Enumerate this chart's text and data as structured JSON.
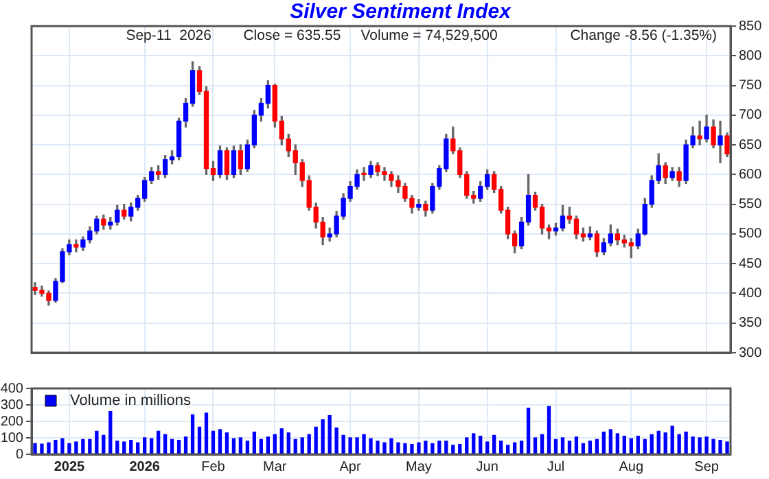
{
  "chart_data": [
    {
      "type": "candlestick",
      "title": "Silver Sentiment Index",
      "annotations": [
        "Sep-11  2026",
        "Close = 635.55",
        "Volume = 74,529,500",
        "Change -8.56 (-1.35%)"
      ],
      "ohlc": [
        [
          410,
          418,
          398,
          405
        ],
        [
          405,
          412,
          395,
          400
        ],
        [
          400,
          404,
          380,
          388
        ],
        [
          388,
          425,
          385,
          420
        ],
        [
          420,
          475,
          418,
          470
        ],
        [
          470,
          490,
          465,
          482
        ],
        [
          482,
          490,
          470,
          478
        ],
        [
          478,
          495,
          472,
          490
        ],
        [
          490,
          512,
          485,
          505
        ],
        [
          505,
          530,
          500,
          525
        ],
        [
          525,
          532,
          508,
          515
        ],
        [
          515,
          528,
          508,
          520
        ],
        [
          520,
          548,
          515,
          540
        ],
        [
          540,
          550,
          525,
          530
        ],
        [
          530,
          552,
          522,
          545
        ],
        [
          545,
          565,
          540,
          560
        ],
        [
          560,
          595,
          555,
          590
        ],
        [
          590,
          612,
          585,
          605
        ],
        [
          605,
          615,
          592,
          600
        ],
        [
          600,
          632,
          595,
          625
        ],
        [
          625,
          640,
          618,
          630
        ],
        [
          630,
          695,
          625,
          690
        ],
        [
          690,
          728,
          680,
          720
        ],
        [
          720,
          790,
          715,
          775
        ],
        [
          775,
          782,
          735,
          740
        ],
        [
          740,
          748,
          600,
          610
        ],
        [
          610,
          622,
          590,
          600
        ],
        [
          600,
          648,
          595,
          640
        ],
        [
          640,
          645,
          592,
          600
        ],
        [
          600,
          648,
          595,
          640
        ],
        [
          640,
          650,
          600,
          610
        ],
        [
          610,
          658,
          605,
          650
        ],
        [
          650,
          708,
          645,
          700
        ],
        [
          700,
          728,
          690,
          720
        ],
        [
          720,
          758,
          712,
          750
        ],
        [
          750,
          752,
          680,
          690
        ],
        [
          690,
          698,
          650,
          660
        ],
        [
          660,
          668,
          630,
          640
        ],
        [
          640,
          650,
          600,
          620
        ],
        [
          620,
          625,
          580,
          590
        ],
        [
          590,
          598,
          540,
          545
        ],
        [
          545,
          552,
          510,
          520
        ],
        [
          520,
          528,
          482,
          495
        ],
        [
          495,
          510,
          488,
          500
        ],
        [
          500,
          538,
          495,
          530
        ],
        [
          530,
          568,
          525,
          560
        ],
        [
          560,
          588,
          555,
          580
        ],
        [
          580,
          608,
          575,
          600
        ],
        [
          600,
          612,
          590,
          600
        ],
        [
          600,
          622,
          595,
          615
        ],
        [
          615,
          620,
          598,
          605
        ],
        [
          605,
          612,
          590,
          600
        ],
        [
          600,
          605,
          580,
          590
        ],
        [
          590,
          598,
          570,
          580
        ],
        [
          580,
          585,
          555,
          560
        ],
        [
          560,
          565,
          535,
          545
        ],
        [
          545,
          558,
          540,
          550
        ],
        [
          550,
          555,
          530,
          540
        ],
        [
          540,
          585,
          535,
          580
        ],
        [
          580,
          615,
          575,
          610
        ],
        [
          610,
          668,
          605,
          660
        ],
        [
          660,
          680,
          635,
          640
        ],
        [
          640,
          645,
          595,
          600
        ],
        [
          600,
          605,
          560,
          565
        ],
        [
          565,
          572,
          552,
          560
        ],
        [
          560,
          588,
          555,
          580
        ],
        [
          580,
          608,
          575,
          600
        ],
        [
          600,
          605,
          570,
          575
        ],
        [
          575,
          580,
          535,
          540
        ],
        [
          540,
          545,
          492,
          500
        ],
        [
          500,
          505,
          468,
          480
        ],
        [
          480,
          528,
          475,
          520
        ],
        [
          520,
          600,
          515,
          565
        ],
        [
          565,
          570,
          540,
          545
        ],
        [
          545,
          550,
          500,
          510
        ],
        [
          510,
          515,
          492,
          505
        ],
        [
          505,
          518,
          498,
          510
        ],
        [
          510,
          548,
          505,
          530
        ],
        [
          530,
          545,
          518,
          525
        ],
        [
          525,
          530,
          492,
          500
        ],
        [
          500,
          510,
          488,
          495
        ],
        [
          495,
          512,
          490,
          500
        ],
        [
          500,
          505,
          462,
          470
        ],
        [
          470,
          492,
          465,
          485
        ],
        [
          485,
          515,
          480,
          500
        ],
        [
          500,
          508,
          482,
          490
        ],
        [
          490,
          498,
          478,
          485
        ],
        [
          485,
          492,
          460,
          480
        ],
        [
          480,
          508,
          475,
          500
        ],
        [
          500,
          560,
          498,
          550
        ],
        [
          550,
          598,
          545,
          590
        ],
        [
          590,
          635,
          585,
          615
        ],
        [
          615,
          620,
          585,
          595
        ],
        [
          595,
          612,
          590,
          605
        ],
        [
          605,
          612,
          580,
          590
        ],
        [
          590,
          658,
          585,
          650
        ],
        [
          650,
          680,
          645,
          665
        ],
        [
          665,
          690,
          650,
          660
        ],
        [
          660,
          700,
          655,
          680
        ],
        [
          680,
          692,
          645,
          650
        ],
        [
          650,
          690,
          620,
          665
        ],
        [
          665,
          670,
          630,
          635
        ]
      ],
      "colors": [
        "#ff0000",
        "#ff0000",
        "#ff0000",
        "#0000ff",
        "#0000ff",
        "#0000ff",
        "#ff0000",
        "#0000ff",
        "#0000ff",
        "#0000ff",
        "#ff0000",
        "#0000ff",
        "#0000ff",
        "#ff0000",
        "#0000ff",
        "#0000ff",
        "#0000ff",
        "#0000ff",
        "#ff0000",
        "#0000ff",
        "#0000ff",
        "#0000ff",
        "#0000ff",
        "#0000ff",
        "#ff0000",
        "#ff0000",
        "#ff0000",
        "#0000ff",
        "#ff0000",
        "#0000ff",
        "#ff0000",
        "#0000ff",
        "#0000ff",
        "#0000ff",
        "#0000ff",
        "#ff0000",
        "#ff0000",
        "#ff0000",
        "#ff0000",
        "#ff0000",
        "#ff0000",
        "#ff0000",
        "#ff0000",
        "#0000ff",
        "#0000ff",
        "#0000ff",
        "#0000ff",
        "#0000ff",
        "#ff0000",
        "#0000ff",
        "#ff0000",
        "#ff0000",
        "#ff0000",
        "#ff0000",
        "#ff0000",
        "#ff0000",
        "#0000ff",
        "#ff0000",
        "#0000ff",
        "#0000ff",
        "#0000ff",
        "#ff0000",
        "#ff0000",
        "#ff0000",
        "#ff0000",
        "#0000ff",
        "#0000ff",
        "#ff0000",
        "#ff0000",
        "#ff0000",
        "#ff0000",
        "#0000ff",
        "#0000ff",
        "#ff0000",
        "#ff0000",
        "#ff0000",
        "#0000ff",
        "#0000ff",
        "#ff0000",
        "#ff0000",
        "#ff0000",
        "#0000ff",
        "#ff0000",
        "#0000ff",
        "#0000ff",
        "#ff0000",
        "#ff0000",
        "#ff0000",
        "#0000ff",
        "#0000ff",
        "#0000ff",
        "#0000ff",
        "#ff0000",
        "#0000ff",
        "#ff0000",
        "#0000ff",
        "#0000ff",
        "#ff0000",
        "#0000ff",
        "#ff0000",
        "#0000ff",
        "#ff0000"
      ],
      "ylim": [
        300,
        850
      ],
      "yticks": [
        300,
        350,
        400,
        450,
        500,
        550,
        600,
        650,
        700,
        750,
        800,
        850
      ],
      "grid": true,
      "tick_labels": "y"
    },
    {
      "type": "bar",
      "legend": "top left",
      "grid": true,
      "categories": [
        null,
        null,
        null,
        null,
        null,
        "2025",
        null,
        null,
        null,
        null,
        null,
        null,
        null,
        null,
        null,
        null,
        "2026",
        null,
        null,
        null,
        null,
        null,
        null,
        null,
        null,
        null,
        "Feb",
        null,
        null,
        null,
        null,
        null,
        null,
        null,
        null,
        "Mar",
        null,
        null,
        null,
        null,
        null,
        null,
        null,
        null,
        null,
        null,
        "Apr",
        null,
        null,
        null,
        null,
        null,
        null,
        null,
        null,
        null,
        "May",
        null,
        null,
        null,
        null,
        null,
        null,
        null,
        null,
        null,
        "Jun",
        null,
        null,
        null,
        null,
        null,
        null,
        null,
        null,
        null,
        "Jul",
        null,
        null,
        null,
        null,
        null,
        null,
        null,
        null,
        null,
        null,
        "Aug",
        null,
        null,
        null,
        null,
        null,
        null,
        null,
        null,
        null,
        null,
        "Sep",
        null,
        null,
        null
      ],
      "series": [
        {
          "name": "Volume in millions",
          "color": "#0000ff",
          "values": [
            65,
            62,
            70,
            85,
            95,
            65,
            75,
            90,
            90,
            140,
            115,
            260,
            80,
            75,
            85,
            70,
            100,
            95,
            140,
            120,
            90,
            85,
            105,
            240,
            165,
            250,
            140,
            150,
            130,
            95,
            100,
            80,
            135,
            90,
            105,
            120,
            155,
            130,
            90,
            100,
            120,
            165,
            210,
            235,
            160,
            115,
            100,
            100,
            120,
            95,
            80,
            70,
            95,
            70,
            65,
            60,
            70,
            80,
            65,
            80,
            80,
            55,
            60,
            100,
            125,
            110,
            75,
            115,
            80,
            55,
            70,
            80,
            280,
            100,
            120,
            290,
            90,
            100,
            80,
            105,
            65,
            80,
            90,
            135,
            150,
            125,
            110,
            95,
            110,
            90,
            120,
            140,
            130,
            170,
            120,
            135,
            105,
            100,
            105,
            90,
            85,
            75
          ]
        }
      ],
      "ylim": [
        0,
        400
      ],
      "yticks": [
        0,
        100,
        200,
        300,
        400
      ]
    }
  ]
}
